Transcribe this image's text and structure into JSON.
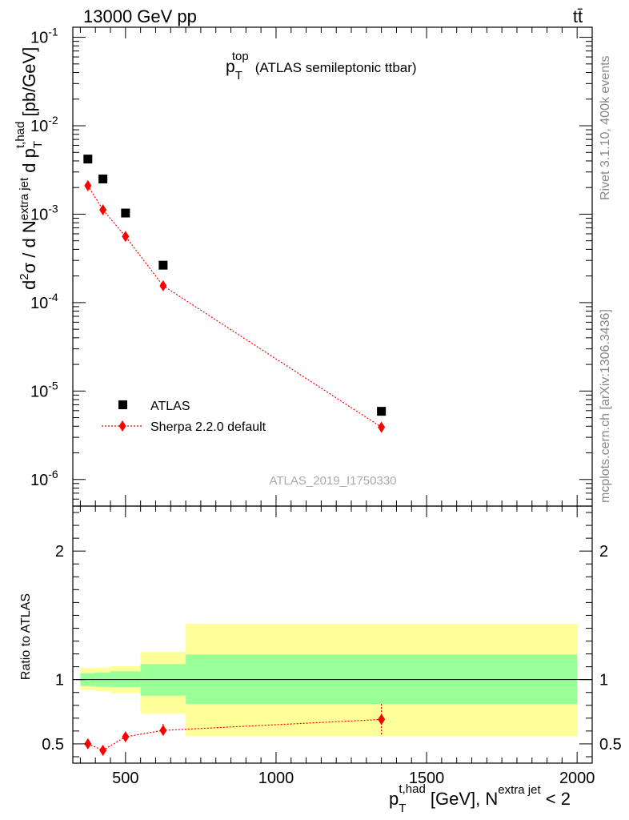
{
  "header": {
    "beam": "13000 GeV pp",
    "process": "tt̄",
    "rivet": "Rivet 3.1.10,  400k events",
    "site": "mcplots.cern.ch [arXiv:1306.3436]",
    "analysis": "ATLAS_2019_I1750330"
  },
  "chart_data": [
    {
      "type": "scatter",
      "title_main": "p",
      "title_sup": "top",
      "title_sub": "T",
      "title_rest": "(ATLAS semileptonic ttbar)",
      "ylabel": {
        "p1": "d",
        "p1_sup": "2",
        "p2": "σ  /  d N",
        "p2_sup": "extra jet",
        "p3": " d p",
        "p3_sup": "t,had",
        "p3_sub": "T",
        "p4": " [pb/GeV]"
      },
      "xlim": [
        325,
        2050
      ],
      "ylim": [
        5e-07,
        0.13
      ],
      "yscale": "log",
      "y_ticks": [
        {
          "value": 1e-06,
          "base": "10",
          "exp": "-6"
        },
        {
          "value": 1e-05,
          "base": "10",
          "exp": "-5"
        },
        {
          "value": 0.0001,
          "base": "10",
          "exp": "-4"
        },
        {
          "value": 0.001,
          "base": "10",
          "exp": "-3"
        },
        {
          "value": 0.01,
          "base": "10",
          "exp": "-2"
        },
        {
          "value": 0.1,
          "base": "10",
          "exp": "-1"
        }
      ],
      "legend_position": "bottom-left",
      "series": [
        {
          "name": "ATLAS",
          "color": "#000000",
          "marker": "square",
          "points": [
            {
              "x": 375,
              "y": 0.0042
            },
            {
              "x": 425,
              "y": 0.0025
            },
            {
              "x": 500,
              "y": 0.00103
            },
            {
              "x": 625,
              "y": 0.000265
            },
            {
              "x": 1350,
              "y": 5.9e-06
            }
          ]
        },
        {
          "name": "Sherpa 2.2.0 default",
          "color": "#ff0000",
          "marker": "diamond",
          "points": [
            {
              "x": 375,
              "y": 0.0021,
              "err": 0.00012
            },
            {
              "x": 425,
              "y": 0.00112,
              "err": 7e-05
            },
            {
              "x": 500,
              "y": 0.00056,
              "err": 4e-05
            },
            {
              "x": 625,
              "y": 0.000155,
              "err": 1.2e-05
            },
            {
              "x": 1350,
              "y": 3.9e-06,
              "err": 5e-07
            }
          ]
        }
      ]
    },
    {
      "type": "scatter",
      "ylabel": "Ratio to ATLAS",
      "xlabel": {
        "p": "p",
        "sup1": "t,had",
        "sub1": "T",
        "rest": " [GeV], N",
        "sup2": "extra jet",
        "tail": " < 2"
      },
      "xlim": [
        325,
        2050
      ],
      "ylim": [
        0.35,
        2.35
      ],
      "x_ticks": [
        {
          "value": 500,
          "label": "500"
        },
        {
          "value": 1000,
          "label": "1000"
        },
        {
          "value": 1500,
          "label": "1500"
        },
        {
          "value": 2000,
          "label": "2000"
        }
      ],
      "y_ticks": [
        {
          "value": 0.5,
          "label": "0.5"
        },
        {
          "value": 1,
          "label": "1"
        },
        {
          "value": 2,
          "label": "2"
        }
      ],
      "bands": [
        {
          "x0": 350,
          "x1": 400,
          "stat_lo": 0.95,
          "stat_hi": 1.05,
          "tot_lo": 0.92,
          "tot_hi": 1.09
        },
        {
          "x0": 400,
          "x1": 450,
          "stat_lo": 0.945,
          "stat_hi": 1.055,
          "tot_lo": 0.91,
          "tot_hi": 1.095
        },
        {
          "x0": 450,
          "x1": 550,
          "stat_lo": 0.94,
          "stat_hi": 1.065,
          "tot_lo": 0.895,
          "tot_hi": 1.105
        },
        {
          "x0": 550,
          "x1": 700,
          "stat_lo": 0.875,
          "stat_hi": 1.12,
          "tot_lo": 0.735,
          "tot_hi": 1.215
        },
        {
          "x0": 700,
          "x1": 2000,
          "stat_lo": 0.81,
          "stat_hi": 1.195,
          "tot_lo": 0.56,
          "tot_hi": 1.435
        }
      ],
      "band_colors": {
        "stat": "#99ff99",
        "total": "#ffff99"
      },
      "series": [
        {
          "name": "Sherpa 2.2.0 default",
          "color": "#ff0000",
          "points": [
            {
              "x": 375,
              "y": 0.5,
              "err": 0.025
            },
            {
              "x": 425,
              "y": 0.45,
              "err": 0.025
            },
            {
              "x": 500,
              "y": 0.555,
              "err": 0.03
            },
            {
              "x": 625,
              "y": 0.605,
              "err": 0.05
            },
            {
              "x": 1350,
              "y": 0.69,
              "err": 0.12
            }
          ]
        }
      ]
    }
  ]
}
